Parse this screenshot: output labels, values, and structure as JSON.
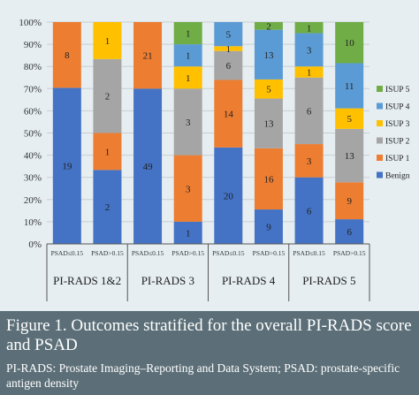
{
  "chart_data": {
    "type": "bar",
    "stacked": true,
    "normalized_percent": true,
    "y_ticks": [
      "0%",
      "10%",
      "20%",
      "30%",
      "40%",
      "50%",
      "60%",
      "70%",
      "80%",
      "90%",
      "100%"
    ],
    "ylim": [
      0,
      100
    ],
    "categories": [
      "PSAD≤0.15",
      "PSAD>0.15",
      "PSAD≤0.15",
      "PSAD>0.15",
      "PSAD≤0.15",
      "PSAD>0.15",
      "PSAD≤0.15",
      "PSAD>0.15"
    ],
    "groups": [
      {
        "label": "PI-RADS 1&2",
        "span": 2
      },
      {
        "label": "PI-RADS 3",
        "span": 2
      },
      {
        "label": "PI-RADS 4",
        "span": 2
      },
      {
        "label": "PI-RADS 5",
        "span": 2
      }
    ],
    "legend_position": "right",
    "series": [
      {
        "name": "Benign",
        "color": "#4472c4",
        "values": [
          19,
          2,
          49,
          1,
          20,
          9,
          6,
          6
        ]
      },
      {
        "name": "ISUP 1",
        "color": "#ed7d31",
        "values": [
          8,
          1,
          21,
          3,
          14,
          16,
          3,
          9
        ]
      },
      {
        "name": "ISUP 2",
        "color": "#a5a5a5",
        "values": [
          0,
          2,
          0,
          3,
          6,
          13,
          6,
          13
        ]
      },
      {
        "name": "ISUP 3",
        "color": "#ffc000",
        "values": [
          0,
          1,
          0,
          1,
          1,
          5,
          1,
          5
        ]
      },
      {
        "name": "ISUP 4",
        "color": "#5b9bd5",
        "values": [
          0,
          0,
          0,
          1,
          5,
          13,
          3,
          11
        ]
      },
      {
        "name": "ISUP 5",
        "color": "#70ad47",
        "values": [
          0,
          0,
          0,
          1,
          0,
          2,
          1,
          10
        ]
      }
    ]
  },
  "caption": {
    "title": "Figure 1. Outcomes stratified for the overall PI-RADS score and PSAD",
    "note": "PI-RADS: Prostate Imaging–Reporting and Data System; PSAD: prostate-specific antigen density"
  }
}
